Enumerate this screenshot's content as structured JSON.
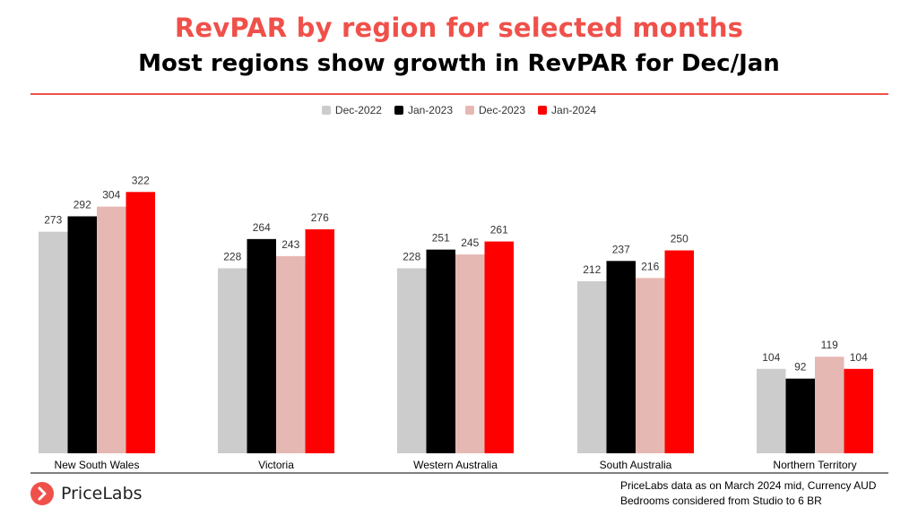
{
  "header": {
    "title": "RevPAR by region for selected months",
    "subtitle": "Most regions show growth in RevPAR for Dec/Jan"
  },
  "colors": {
    "accent": "#f0504a",
    "series": [
      "#cccccc",
      "#000000",
      "#e6b8b3",
      "#ff0000"
    ]
  },
  "legend": {
    "placement": "top-center",
    "items": [
      "Dec-2022",
      "Jan-2023",
      "Dec-2023",
      "Jan-2024"
    ]
  },
  "chart_data": {
    "type": "bar",
    "title": "",
    "xlabel": "",
    "ylabel": "",
    "ylim": [
      0,
      340
    ],
    "grid": false,
    "categories": [
      "New South Wales",
      "Victoria",
      "Western Australia",
      "South Australia",
      "Northern Territory"
    ],
    "series": [
      {
        "name": "Dec-2022",
        "values": [
          273,
          228,
          228,
          212,
          104
        ]
      },
      {
        "name": "Jan-2023",
        "values": [
          292,
          264,
          251,
          237,
          92
        ]
      },
      {
        "name": "Dec-2023",
        "values": [
          304,
          243,
          245,
          216,
          119
        ]
      },
      {
        "name": "Jan-2024",
        "values": [
          322,
          276,
          261,
          250,
          104
        ]
      }
    ]
  },
  "footer": {
    "brand": "PriceLabs",
    "note_line1": "PriceLabs data as on March 2024 mid, Currency AUD",
    "note_line2": "Bedrooms considered from Studio to 6 BR"
  }
}
